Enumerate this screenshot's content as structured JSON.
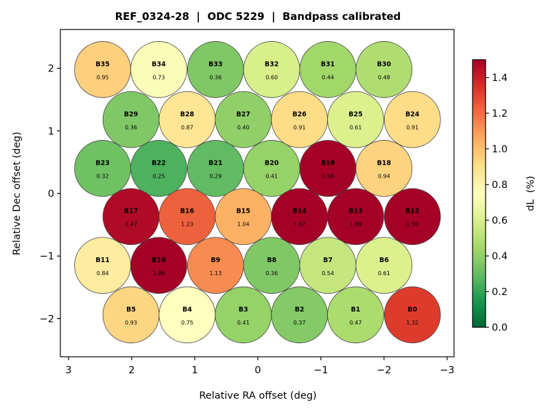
{
  "chart_data": {
    "type": "scatter",
    "title": "REF_0324-28  |  ODC 5229  |  Bandpass calibrated",
    "xlabel": "Relative RA offset (deg)",
    "ylabel": "Relative Dec offset (deg)",
    "xlim": [
      3.13,
      -3.11
    ],
    "ylim": [
      -2.61,
      2.62
    ],
    "x_inverted": true,
    "grid": false,
    "xticks": [
      3,
      2,
      1,
      0,
      -1,
      -2,
      -3
    ],
    "xtick_labels": [
      "3",
      "2",
      "1",
      "0",
      "−1",
      "−2",
      "−3"
    ],
    "yticks": [
      2,
      1,
      0,
      -1,
      -2
    ],
    "ytick_labels": [
      "2",
      "1",
      "0",
      "−1",
      "−2"
    ],
    "marker": "circle",
    "marker_radius_deg": 0.445,
    "colorbar": {
      "label": "dL  (%)",
      "colormap": "RdYlGn_r",
      "range": [
        0.0,
        1.5
      ],
      "ticks": [
        0.0,
        0.2,
        0.4,
        0.6,
        0.8,
        1.0,
        1.2,
        1.4
      ],
      "tick_labels": [
        "0.0",
        "0.2",
        "0.4",
        "0.6",
        "0.8",
        "1.0",
        "1.2",
        "1.4"
      ],
      "placement": "right"
    },
    "points": [
      {
        "name": "B35",
        "ra": 2.46,
        "dec": 1.98,
        "value": 0.95,
        "label": "0.95"
      },
      {
        "name": "B34",
        "ra": 1.57,
        "dec": 1.98,
        "value": 0.73,
        "label": "0.73"
      },
      {
        "name": "B33",
        "ra": 0.67,
        "dec": 1.98,
        "value": 0.36,
        "label": "0.36"
      },
      {
        "name": "B32",
        "ra": -0.22,
        "dec": 1.98,
        "value": 0.6,
        "label": "0.60"
      },
      {
        "name": "B31",
        "ra": -1.11,
        "dec": 1.98,
        "value": 0.44,
        "label": "0.44"
      },
      {
        "name": "B30",
        "ra": -2.0,
        "dec": 1.98,
        "value": 0.48,
        "label": "0.48"
      },
      {
        "name": "B29",
        "ra": 2.01,
        "dec": 1.18,
        "value": 0.36,
        "label": "0.36"
      },
      {
        "name": "B28",
        "ra": 1.12,
        "dec": 1.18,
        "value": 0.87,
        "label": "0.87"
      },
      {
        "name": "B27",
        "ra": 0.23,
        "dec": 1.18,
        "value": 0.4,
        "label": "0.40"
      },
      {
        "name": "B26",
        "ra": -0.66,
        "dec": 1.18,
        "value": 0.91,
        "label": "0.91"
      },
      {
        "name": "B25",
        "ra": -1.55,
        "dec": 1.18,
        "value": 0.61,
        "label": "0.61"
      },
      {
        "name": "B24",
        "ra": -2.45,
        "dec": 1.18,
        "value": 0.91,
        "label": "0.91"
      },
      {
        "name": "B23",
        "ra": 2.46,
        "dec": 0.4,
        "value": 0.32,
        "label": "0.32"
      },
      {
        "name": "B22",
        "ra": 1.57,
        "dec": 0.4,
        "value": 0.25,
        "label": "0.25"
      },
      {
        "name": "B21",
        "ra": 0.67,
        "dec": 0.4,
        "value": 0.29,
        "label": "0.29"
      },
      {
        "name": "B20",
        "ra": -0.22,
        "dec": 0.4,
        "value": 0.41,
        "label": "0.41"
      },
      {
        "name": "B19",
        "ra": -1.11,
        "dec": 0.4,
        "value": 1.58,
        "label": "1.58"
      },
      {
        "name": "B18",
        "ra": -2.0,
        "dec": 0.4,
        "value": 0.94,
        "label": "0.94"
      },
      {
        "name": "B17",
        "ra": 2.01,
        "dec": -0.37,
        "value": 1.47,
        "label": "1.47"
      },
      {
        "name": "B16",
        "ra": 1.12,
        "dec": -0.37,
        "value": 1.23,
        "label": "1.23"
      },
      {
        "name": "B15",
        "ra": 0.23,
        "dec": -0.37,
        "value": 1.04,
        "label": "1.04"
      },
      {
        "name": "B14",
        "ra": -0.66,
        "dec": -0.37,
        "value": 1.67,
        "label": "1.67"
      },
      {
        "name": "B13",
        "ra": -1.55,
        "dec": -0.37,
        "value": 1.89,
        "label": "1.89"
      },
      {
        "name": "B12",
        "ra": -2.45,
        "dec": -0.37,
        "value": 1.5,
        "label": "1.50"
      },
      {
        "name": "B11",
        "ra": 2.46,
        "dec": -1.15,
        "value": 0.84,
        "label": "0.84"
      },
      {
        "name": "B10",
        "ra": 1.57,
        "dec": -1.15,
        "value": 1.86,
        "label": "1.86"
      },
      {
        "name": "B9",
        "ra": 0.67,
        "dec": -1.15,
        "value": 1.13,
        "label": "1.13"
      },
      {
        "name": "B8",
        "ra": -0.22,
        "dec": -1.15,
        "value": 0.36,
        "label": "0.36"
      },
      {
        "name": "B7",
        "ra": -1.11,
        "dec": -1.15,
        "value": 0.54,
        "label": "0.54"
      },
      {
        "name": "B6",
        "ra": -2.0,
        "dec": -1.15,
        "value": 0.61,
        "label": "0.61"
      },
      {
        "name": "B5",
        "ra": 2.01,
        "dec": -1.94,
        "value": 0.93,
        "label": "0.93"
      },
      {
        "name": "B4",
        "ra": 1.12,
        "dec": -1.94,
        "value": 0.75,
        "label": "0.75"
      },
      {
        "name": "B3",
        "ra": 0.23,
        "dec": -1.94,
        "value": 0.41,
        "label": "0.41"
      },
      {
        "name": "B2",
        "ra": -0.66,
        "dec": -1.94,
        "value": 0.37,
        "label": "0.37"
      },
      {
        "name": "B1",
        "ra": -1.55,
        "dec": -1.94,
        "value": 0.47,
        "label": "0.47"
      },
      {
        "name": "B0",
        "ra": -2.45,
        "dec": -1.94,
        "value": 1.32,
        "label": "1.32"
      }
    ]
  }
}
